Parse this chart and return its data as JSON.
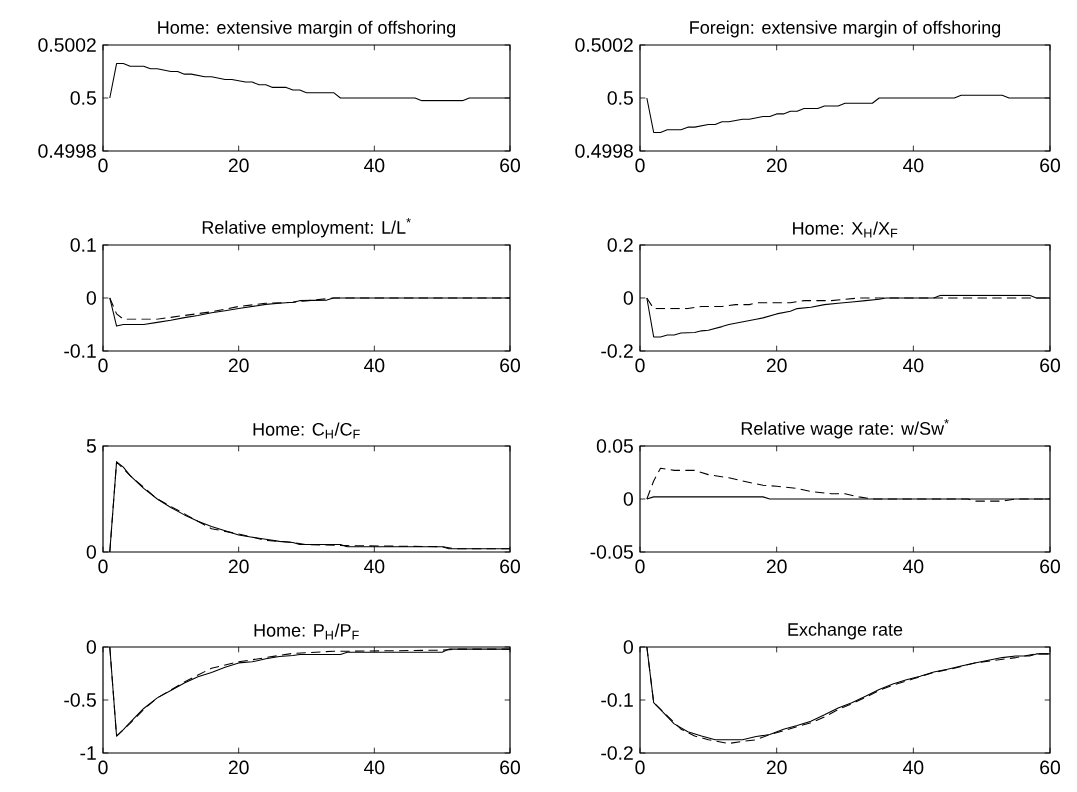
{
  "chart_data": [
    {
      "type": "line",
      "title": "Home: extensive margin of offshoring",
      "xlim": [
        0,
        60
      ],
      "ylim": [
        0.4998,
        0.5002
      ],
      "xticks": [
        0,
        20,
        40,
        60
      ],
      "yticks": [
        0.4998,
        0.5,
        0.5002
      ],
      "series": [
        {
          "color": "#000000",
          "line_style": "solid",
          "x": [
            1,
            2,
            3,
            4,
            6,
            7,
            8,
            10,
            11,
            12,
            13,
            15,
            16,
            18,
            19,
            21,
            22,
            23,
            24,
            25,
            27,
            28,
            29,
            30,
            34,
            35,
            46,
            47,
            53,
            54,
            60
          ],
          "values": [
            0.5,
            0.50013,
            0.50013,
            0.50012,
            0.50012,
            0.50011,
            0.50011,
            0.5001,
            0.5001,
            0.50009,
            0.50009,
            0.50008,
            0.50008,
            0.50007,
            0.50007,
            0.50006,
            0.50006,
            0.50005,
            0.50005,
            0.50004,
            0.50004,
            0.50003,
            0.50003,
            0.50002,
            0.50002,
            0.5,
            0.5,
            0.49999,
            0.49999,
            0.5,
            0.5
          ]
        }
      ]
    },
    {
      "type": "line",
      "title": "Foreign: extensive margin of offshoring",
      "xlim": [
        0,
        60
      ],
      "ylim": [
        0.4998,
        0.5002
      ],
      "xticks": [
        0,
        20,
        40,
        60
      ],
      "yticks": [
        0.4998,
        0.5,
        0.5002
      ],
      "series": [
        {
          "color": "#000000",
          "line_style": "solid",
          "x": [
            1,
            2,
            3,
            4,
            6,
            7,
            8,
            10,
            11,
            12,
            13,
            15,
            16,
            18,
            19,
            20,
            21,
            22,
            23,
            24,
            26,
            27,
            29,
            30,
            34,
            35,
            46,
            47,
            53,
            54,
            60
          ],
          "values": [
            0.5,
            0.49987,
            0.49987,
            0.49988,
            0.49988,
            0.49989,
            0.49989,
            0.4999,
            0.4999,
            0.49991,
            0.49991,
            0.49992,
            0.49992,
            0.49993,
            0.49993,
            0.49994,
            0.49994,
            0.49995,
            0.49995,
            0.49996,
            0.49996,
            0.49997,
            0.49997,
            0.49998,
            0.49998,
            0.5,
            0.5,
            0.50001,
            0.50001,
            0.5,
            0.5
          ]
        }
      ]
    },
    {
      "type": "line",
      "title": "Relative employment: L/L$^{*}$",
      "xlim": [
        0,
        60
      ],
      "ylim": [
        -0.1,
        0.1
      ],
      "xticks": [
        0,
        20,
        40,
        60
      ],
      "yticks": [
        -0.1,
        0,
        0.1
      ],
      "series": [
        {
          "color": "#000000",
          "line_style": "solid",
          "x": [
            1,
            2,
            3,
            6,
            8,
            10,
            12,
            14,
            16,
            18,
            20,
            22,
            24,
            26,
            28,
            29,
            33,
            34,
            60
          ],
          "values": [
            0,
            -0.053,
            -0.05,
            -0.05,
            -0.046,
            -0.042,
            -0.037,
            -0.033,
            -0.028,
            -0.024,
            -0.02,
            -0.016,
            -0.012,
            -0.01,
            -0.008,
            -0.005,
            -0.004,
            0,
            0
          ]
        },
        {
          "color": "#000000",
          "line_style": "dashed",
          "x": [
            1,
            2,
            3,
            8,
            12,
            16,
            20,
            24,
            28,
            34,
            60
          ],
          "values": [
            0,
            -0.03,
            -0.04,
            -0.04,
            -0.033,
            -0.026,
            -0.016,
            -0.01,
            -0.008,
            0,
            0
          ]
        }
      ]
    },
    {
      "type": "line",
      "title": "Home: X$_{H}$/X$_{F}$",
      "xlim": [
        0,
        60
      ],
      "ylim": [
        -0.2,
        0.2
      ],
      "xticks": [
        0,
        20,
        40,
        60
      ],
      "yticks": [
        -0.2,
        0,
        0.2
      ],
      "series": [
        {
          "color": "#000000",
          "line_style": "solid",
          "x": [
            1,
            2,
            3,
            4,
            5,
            6,
            8,
            9,
            10,
            12,
            13,
            15,
            17,
            18,
            20,
            22,
            23,
            25,
            27,
            29,
            31,
            33,
            35,
            36,
            43,
            44,
            57,
            58,
            60
          ],
          "values": [
            0,
            -0.147,
            -0.147,
            -0.14,
            -0.14,
            -0.132,
            -0.13,
            -0.124,
            -0.122,
            -0.108,
            -0.1,
            -0.09,
            -0.08,
            -0.075,
            -0.06,
            -0.05,
            -0.04,
            -0.035,
            -0.025,
            -0.02,
            -0.015,
            -0.01,
            -0.005,
            0,
            0,
            0.01,
            0.01,
            0,
            0
          ]
        },
        {
          "color": "#000000",
          "line_style": "dashed",
          "x": [
            1,
            2,
            7,
            9,
            12,
            14,
            16,
            17,
            22,
            24,
            28,
            30,
            32,
            60
          ],
          "values": [
            0,
            -0.04,
            -0.04,
            -0.032,
            -0.032,
            -0.025,
            -0.025,
            -0.018,
            -0.018,
            -0.01,
            -0.01,
            -0.005,
            0,
            0
          ]
        }
      ]
    },
    {
      "type": "line",
      "title": "Home: C$_{H}$/C$_{F}$",
      "xlim": [
        0,
        60
      ],
      "ylim": [
        0,
        5
      ],
      "xticks": [
        0,
        20,
        40,
        60
      ],
      "yticks": [
        0,
        5
      ],
      "series": [
        {
          "color": "#000000",
          "line_style": "solid",
          "x": [
            1,
            2,
            3,
            4,
            6,
            8,
            10,
            12,
            14,
            16,
            18,
            20,
            22,
            24,
            26,
            28,
            29,
            35,
            36,
            50,
            51,
            60
          ],
          "values": [
            0,
            4.25,
            4,
            3.6,
            3,
            2.5,
            2.1,
            1.75,
            1.45,
            1.2,
            1,
            0.8,
            0.7,
            0.6,
            0.5,
            0.45,
            0.35,
            0.35,
            0.25,
            0.25,
            0.15,
            0.15
          ]
        },
        {
          "color": "#000000",
          "line_style": "dashed",
          "x": [
            1,
            2,
            4,
            6,
            8,
            12,
            16,
            20,
            24,
            28,
            30,
            36,
            50,
            52,
            60
          ],
          "values": [
            0,
            4.25,
            3.6,
            3.05,
            2.5,
            1.8,
            1.1,
            0.85,
            0.55,
            0.45,
            0.35,
            0.3,
            0.25,
            0.15,
            0.15
          ]
        }
      ]
    },
    {
      "type": "line",
      "title": "Relative wage rate: w/Sw$^{*}$",
      "xlim": [
        0,
        60
      ],
      "ylim": [
        -0.05,
        0.05
      ],
      "xticks": [
        0,
        20,
        40,
        60
      ],
      "yticks": [
        -0.05,
        0,
        0.05
      ],
      "series": [
        {
          "color": "#000000",
          "line_style": "solid",
          "x": [
            1,
            2,
            18,
            19,
            60
          ],
          "values": [
            0,
            0.002,
            0.002,
            0,
            0
          ]
        },
        {
          "color": "#000000",
          "line_style": "dashed",
          "x": [
            1,
            2,
            3,
            5,
            8,
            10,
            13,
            15,
            18,
            20,
            23,
            25,
            28,
            30,
            32,
            34,
            48,
            49,
            53,
            55,
            60
          ],
          "values": [
            0,
            0.017,
            0.029,
            0.027,
            0.027,
            0.023,
            0.02,
            0.017,
            0.013,
            0.012,
            0.01,
            0.007,
            0.005,
            0.005,
            0.002,
            0,
            0,
            -0.002,
            -0.002,
            0,
            0
          ]
        }
      ]
    },
    {
      "type": "line",
      "title": "Home: P$_{H}$/P$_{F}$",
      "xlim": [
        0,
        60
      ],
      "ylim": [
        -1,
        0
      ],
      "xticks": [
        0,
        20,
        40,
        60
      ],
      "yticks": [
        -1,
        -0.5,
        0
      ],
      "series": [
        {
          "color": "#000000",
          "line_style": "solid",
          "x": [
            1,
            2,
            3,
            4,
            6,
            8,
            10,
            12,
            14,
            16,
            18,
            20,
            22,
            24,
            26,
            28,
            29,
            35,
            36,
            50,
            51,
            60
          ],
          "values": [
            0,
            -0.84,
            -0.78,
            -0.71,
            -0.58,
            -0.48,
            -0.41,
            -0.34,
            -0.28,
            -0.24,
            -0.19,
            -0.15,
            -0.14,
            -0.11,
            -0.09,
            -0.08,
            -0.07,
            -0.07,
            -0.05,
            -0.05,
            -0.02,
            -0.02
          ]
        },
        {
          "color": "#000000",
          "line_style": "dashed",
          "x": [
            1,
            2,
            4,
            6,
            8,
            12,
            16,
            20,
            24,
            28,
            34,
            36,
            50,
            52,
            60
          ],
          "values": [
            0,
            -0.84,
            -0.72,
            -0.59,
            -0.48,
            -0.33,
            -0.2,
            -0.14,
            -0.1,
            -0.06,
            -0.04,
            -0.04,
            -0.03,
            -0.02,
            -0.02
          ]
        }
      ]
    },
    {
      "type": "line",
      "title": "Exchange rate",
      "xlim": [
        0,
        60
      ],
      "ylim": [
        -0.2,
        0
      ],
      "xticks": [
        0,
        20,
        40,
        60
      ],
      "yticks": [
        -0.2,
        -0.1,
        0
      ],
      "series": [
        {
          "color": "#000000",
          "line_style": "solid",
          "x": [
            1,
            2,
            3,
            5,
            7,
            9,
            11,
            15,
            17,
            19,
            21,
            23,
            25,
            27,
            29,
            31,
            33,
            35,
            37,
            39,
            41,
            43,
            45,
            47,
            49,
            51,
            53,
            55,
            57,
            58,
            60
          ],
          "values": [
            0,
            -0.105,
            -0.118,
            -0.145,
            -0.16,
            -0.168,
            -0.175,
            -0.175,
            -0.169,
            -0.165,
            -0.155,
            -0.148,
            -0.14,
            -0.128,
            -0.115,
            -0.105,
            -0.093,
            -0.08,
            -0.07,
            -0.062,
            -0.055,
            -0.047,
            -0.042,
            -0.036,
            -0.03,
            -0.025,
            -0.02,
            -0.017,
            -0.017,
            -0.013,
            -0.013
          ]
        },
        {
          "color": "#000000",
          "line_style": "dashed",
          "x": [
            1,
            2,
            4,
            6,
            8,
            10,
            13,
            15,
            17,
            19,
            21,
            23,
            25,
            27,
            29,
            31,
            33,
            35,
            37,
            40,
            43,
            46,
            49,
            52,
            55,
            58,
            60
          ],
          "values": [
            0,
            -0.105,
            -0.13,
            -0.155,
            -0.168,
            -0.175,
            -0.182,
            -0.178,
            -0.175,
            -0.165,
            -0.158,
            -0.15,
            -0.143,
            -0.132,
            -0.118,
            -0.107,
            -0.095,
            -0.082,
            -0.072,
            -0.06,
            -0.048,
            -0.04,
            -0.03,
            -0.025,
            -0.02,
            -0.013,
            -0.013
          ]
        }
      ]
    }
  ]
}
